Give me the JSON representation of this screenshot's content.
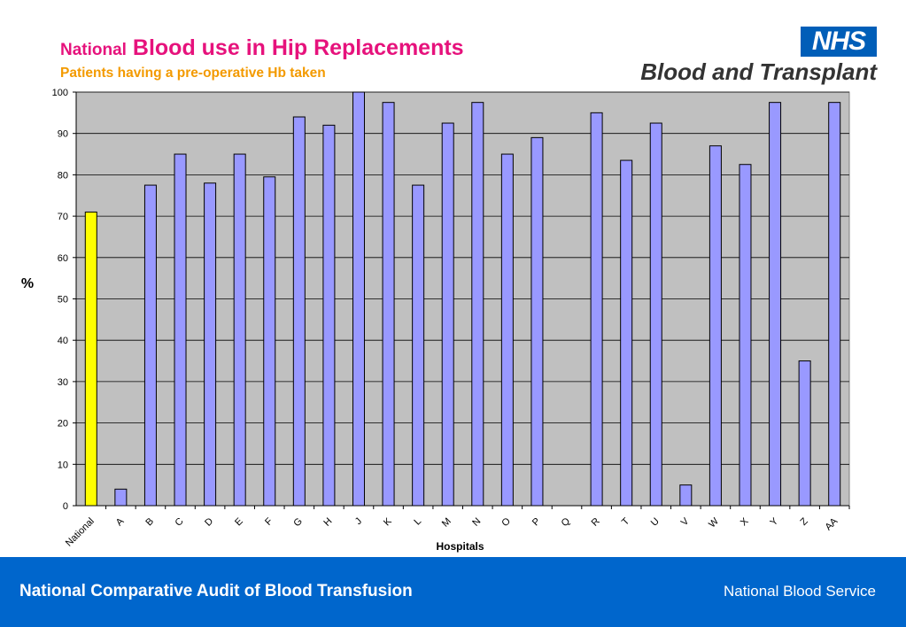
{
  "header": {
    "title_prefix": "National",
    "title_main": "Blood use in Hip Replacements",
    "subtitle": "Patients having a pre-operative Hb taken",
    "logo_badge": "NHS",
    "logo_text": "Blood and Transplant"
  },
  "footer": {
    "left_text": "National Comparative Audit of Blood Transfusion",
    "right_text": "National Blood Service"
  },
  "colors": {
    "plot_background": "#c0c0c0",
    "bar_default": "#9999ff",
    "bar_highlight": "#ffff00",
    "title": "#e6127c",
    "subtitle": "#f39a00",
    "footer_bg": "#0066cc",
    "nhs_blue": "#005eb8"
  },
  "chart_data": {
    "type": "bar",
    "categories": [
      "National",
      "A",
      "B",
      "C",
      "D",
      "E",
      "F",
      "G",
      "H",
      "J",
      "K",
      "L",
      "M",
      "N",
      "O",
      "P",
      "Q",
      "R",
      "T",
      "U",
      "V",
      "W",
      "X",
      "Y",
      "Z",
      "AA"
    ],
    "values": [
      71,
      4,
      77.5,
      85,
      78,
      85,
      79.5,
      94,
      92,
      100,
      97.5,
      77.5,
      92.5,
      97.5,
      85,
      89,
      null,
      95,
      83.5,
      92.5,
      5,
      87,
      82.5,
      97.5,
      35,
      97.5
    ],
    "highlight": [
      "National"
    ],
    "xlabel": "Hospitals",
    "ylabel": "%",
    "ylim": [
      0,
      100
    ],
    "yticks": [
      0,
      10,
      20,
      30,
      40,
      50,
      60,
      70,
      80,
      90,
      100
    ],
    "grid": true,
    "legend": "none"
  }
}
